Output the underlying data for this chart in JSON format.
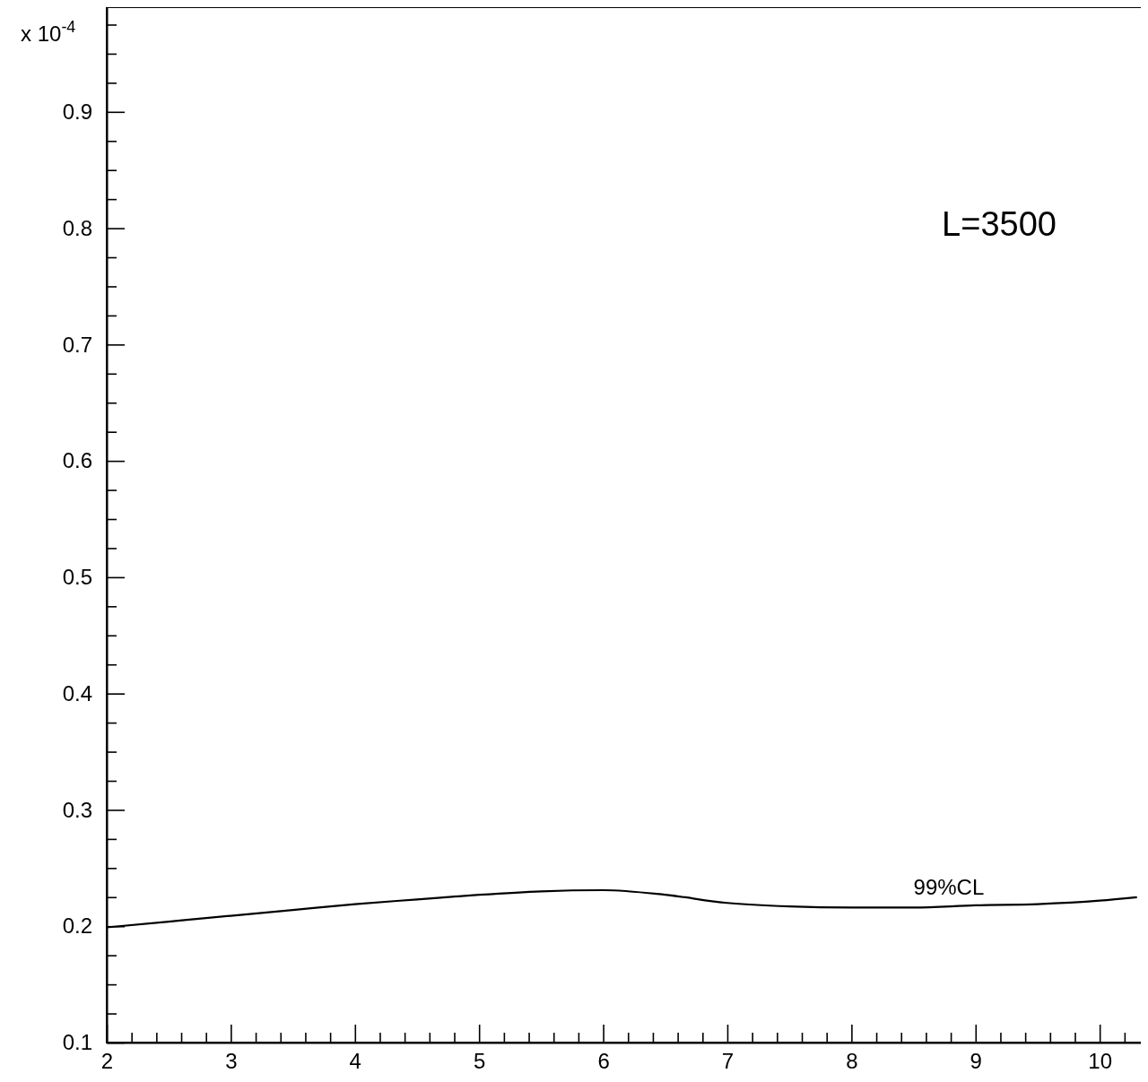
{
  "chart_data": {
    "type": "line",
    "ylabel": "x 10$^{-4}$",
    "x": [
      2,
      2.5,
      3,
      3.5,
      4,
      4.5,
      5,
      5.5,
      6,
      6.5,
      7,
      7.5,
      8,
      8.5,
      9,
      9.5,
      10,
      10.3
    ],
    "series": [
      {
        "name": "99%CL",
        "color": "#000000",
        "values": [
          0.199,
          0.204,
          0.209,
          0.214,
          0.219,
          0.223,
          0.227,
          0.23,
          0.231,
          0.227,
          0.22,
          0.217,
          0.216,
          0.216,
          0.218,
          0.219,
          0.222,
          0.225
        ]
      }
    ],
    "annotations": [
      "L=3500"
    ],
    "xlim": [
      2,
      10.36
    ],
    "ylim": [
      0.1,
      0.99
    ],
    "xticks": [
      2,
      {
        "value": 2.2,
        "label": null
      },
      {
        "value": 2.4,
        "label": null
      },
      {
        "value": 2.6,
        "label": null
      },
      {
        "value": 2.8,
        "label": null
      },
      3,
      {
        "value": 3.2,
        "label": null
      },
      {
        "value": 3.4,
        "label": null
      },
      {
        "value": 3.6,
        "label": null
      },
      {
        "value": 3.8,
        "label": null
      },
      4,
      {
        "value": 4.2,
        "label": null
      },
      {
        "value": 4.4,
        "label": null
      },
      {
        "value": 4.6,
        "label": null
      },
      {
        "value": 4.8,
        "label": null
      },
      5,
      {
        "value": 5.2,
        "label": null
      },
      {
        "value": 5.4,
        "label": null
      },
      {
        "value": 5.6,
        "label": null
      },
      {
        "value": 5.8,
        "label": null
      },
      6,
      {
        "value": 6.2,
        "label": null
      },
      {
        "value": 6.4,
        "label": null
      },
      {
        "value": 6.6,
        "label": null
      },
      {
        "value": 6.8,
        "label": null
      },
      7,
      {
        "value": 7.2,
        "label": null
      },
      {
        "value": 7.4,
        "label": null
      },
      {
        "value": 7.6,
        "label": null
      },
      {
        "value": 7.8,
        "label": null
      },
      8,
      {
        "value": 8.2,
        "label": null
      },
      {
        "value": 8.4,
        "label": null
      },
      {
        "value": 8.6,
        "label": null
      },
      {
        "value": 8.8,
        "label": null
      },
      9,
      {
        "value": 9.2,
        "label": null
      },
      {
        "value": 9.4,
        "label": null
      },
      {
        "value": 9.6,
        "label": null
      },
      {
        "value": 9.8,
        "label": null
      },
      10,
      {
        "value": 10.2,
        "label": null
      }
    ],
    "yticks": [
      0.1,
      {
        "value": 0.125,
        "label": null
      },
      {
        "value": 0.15,
        "label": null
      },
      {
        "value": 0.175,
        "label": null
      },
      0.2,
      {
        "value": 0.225,
        "label": null
      },
      {
        "value": 0.25,
        "label": null
      },
      {
        "value": 0.275,
        "label": null
      },
      0.3,
      {
        "value": 0.325,
        "label": null
      },
      {
        "value": 0.35,
        "label": null
      },
      {
        "value": 0.375,
        "label": null
      },
      0.4,
      {
        "value": 0.425,
        "label": null
      },
      {
        "value": 0.45,
        "label": null
      },
      {
        "value": 0.475,
        "label": null
      },
      0.5,
      {
        "value": 0.525,
        "label": null
      },
      {
        "value": 0.55,
        "label": null
      },
      {
        "value": 0.575,
        "label": null
      },
      0.6,
      {
        "value": 0.625,
        "label": null
      },
      {
        "value": 0.65,
        "label": null
      },
      {
        "value": 0.675,
        "label": null
      },
      0.7,
      {
        "value": 0.725,
        "label": null
      },
      {
        "value": 0.75,
        "label": null
      },
      {
        "value": 0.775,
        "label": null
      },
      0.8,
      {
        "value": 0.825,
        "label": null
      },
      {
        "value": 0.85,
        "label": null
      },
      {
        "value": 0.875,
        "label": null
      },
      0.9,
      {
        "value": 0.925,
        "label": null
      },
      {
        "value": 0.95,
        "label": null
      },
      {
        "value": 0.975,
        "label": null
      }
    ],
    "grid": false,
    "legend": false,
    "marker": "none",
    "line_style": "solid"
  }
}
